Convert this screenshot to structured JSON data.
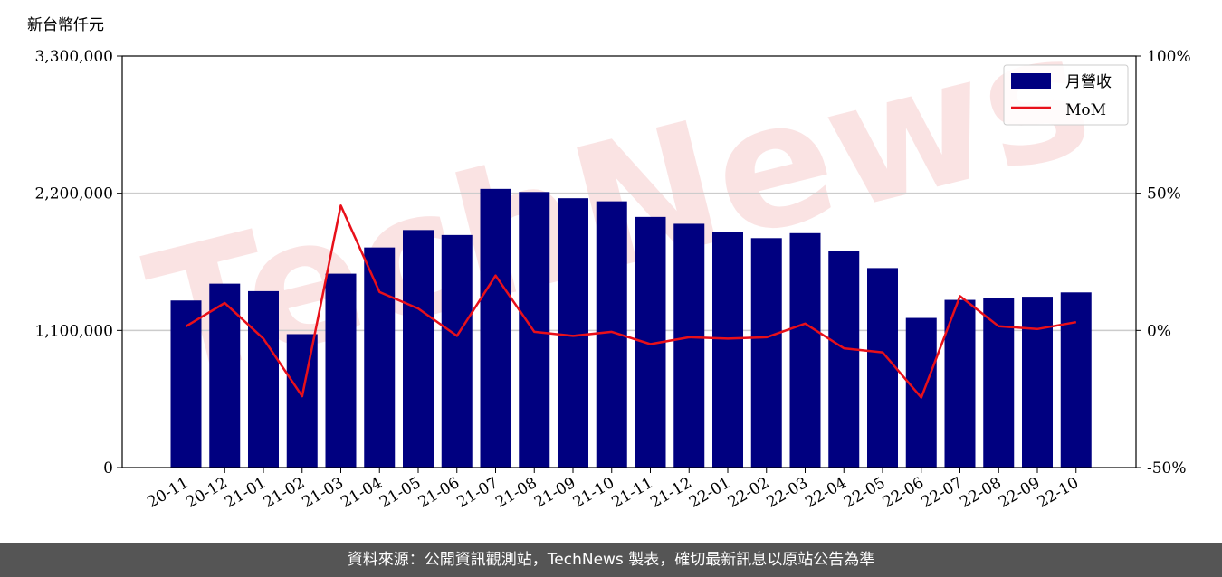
{
  "chart_data": {
    "type": "bar",
    "y_unit_label": "新台幣仟元",
    "categories": [
      "20-11",
      "20-12",
      "21-01",
      "21-02",
      "21-03",
      "21-04",
      "21-05",
      "21-06",
      "21-07",
      "21-08",
      "21-09",
      "21-10",
      "21-11",
      "21-12",
      "22-01",
      "22-02",
      "22-03",
      "22-04",
      "22-05",
      "22-06",
      "22-07",
      "22-08",
      "22-09",
      "22-10"
    ],
    "series": [
      {
        "name": "月營收",
        "type": "bar",
        "axis": "left",
        "color": "#000080",
        "values": [
          1340000,
          1475000,
          1415000,
          1070000,
          1555000,
          1765000,
          1905000,
          1865000,
          2235000,
          2210000,
          2160000,
          2135000,
          2010000,
          1955000,
          1890000,
          1840000,
          1880000,
          1740000,
          1600000,
          1200000,
          1345000,
          1360000,
          1370000,
          1405000
        ]
      },
      {
        "name": "MoM",
        "type": "line",
        "axis": "right",
        "color": "#e8101a",
        "values": [
          1.5,
          10.0,
          -3.0,
          -24.0,
          45.5,
          14.0,
          8.0,
          -2.0,
          20.0,
          -0.5,
          -2.0,
          -0.5,
          -5.0,
          -2.5,
          -3.0,
          -2.5,
          2.5,
          -6.5,
          -8.0,
          -24.5,
          12.5,
          1.5,
          0.5,
          3.0
        ]
      }
    ],
    "y_left": {
      "min": 0,
      "max": 3300000,
      "ticks": [
        "0",
        "1,100,000",
        "2,200,000",
        "3,300,000"
      ]
    },
    "y_right": {
      "min": -50,
      "max": 100,
      "ticks": [
        "-50%",
        "0%",
        "50%",
        "100%"
      ]
    },
    "grid": "horizontal",
    "legend_position": "top-right",
    "watermark": "TechNews"
  },
  "footer": {
    "text": "資料來源：公開資訊觀測站，TechNews 製表，確切最新訊息以原站公告為準"
  }
}
